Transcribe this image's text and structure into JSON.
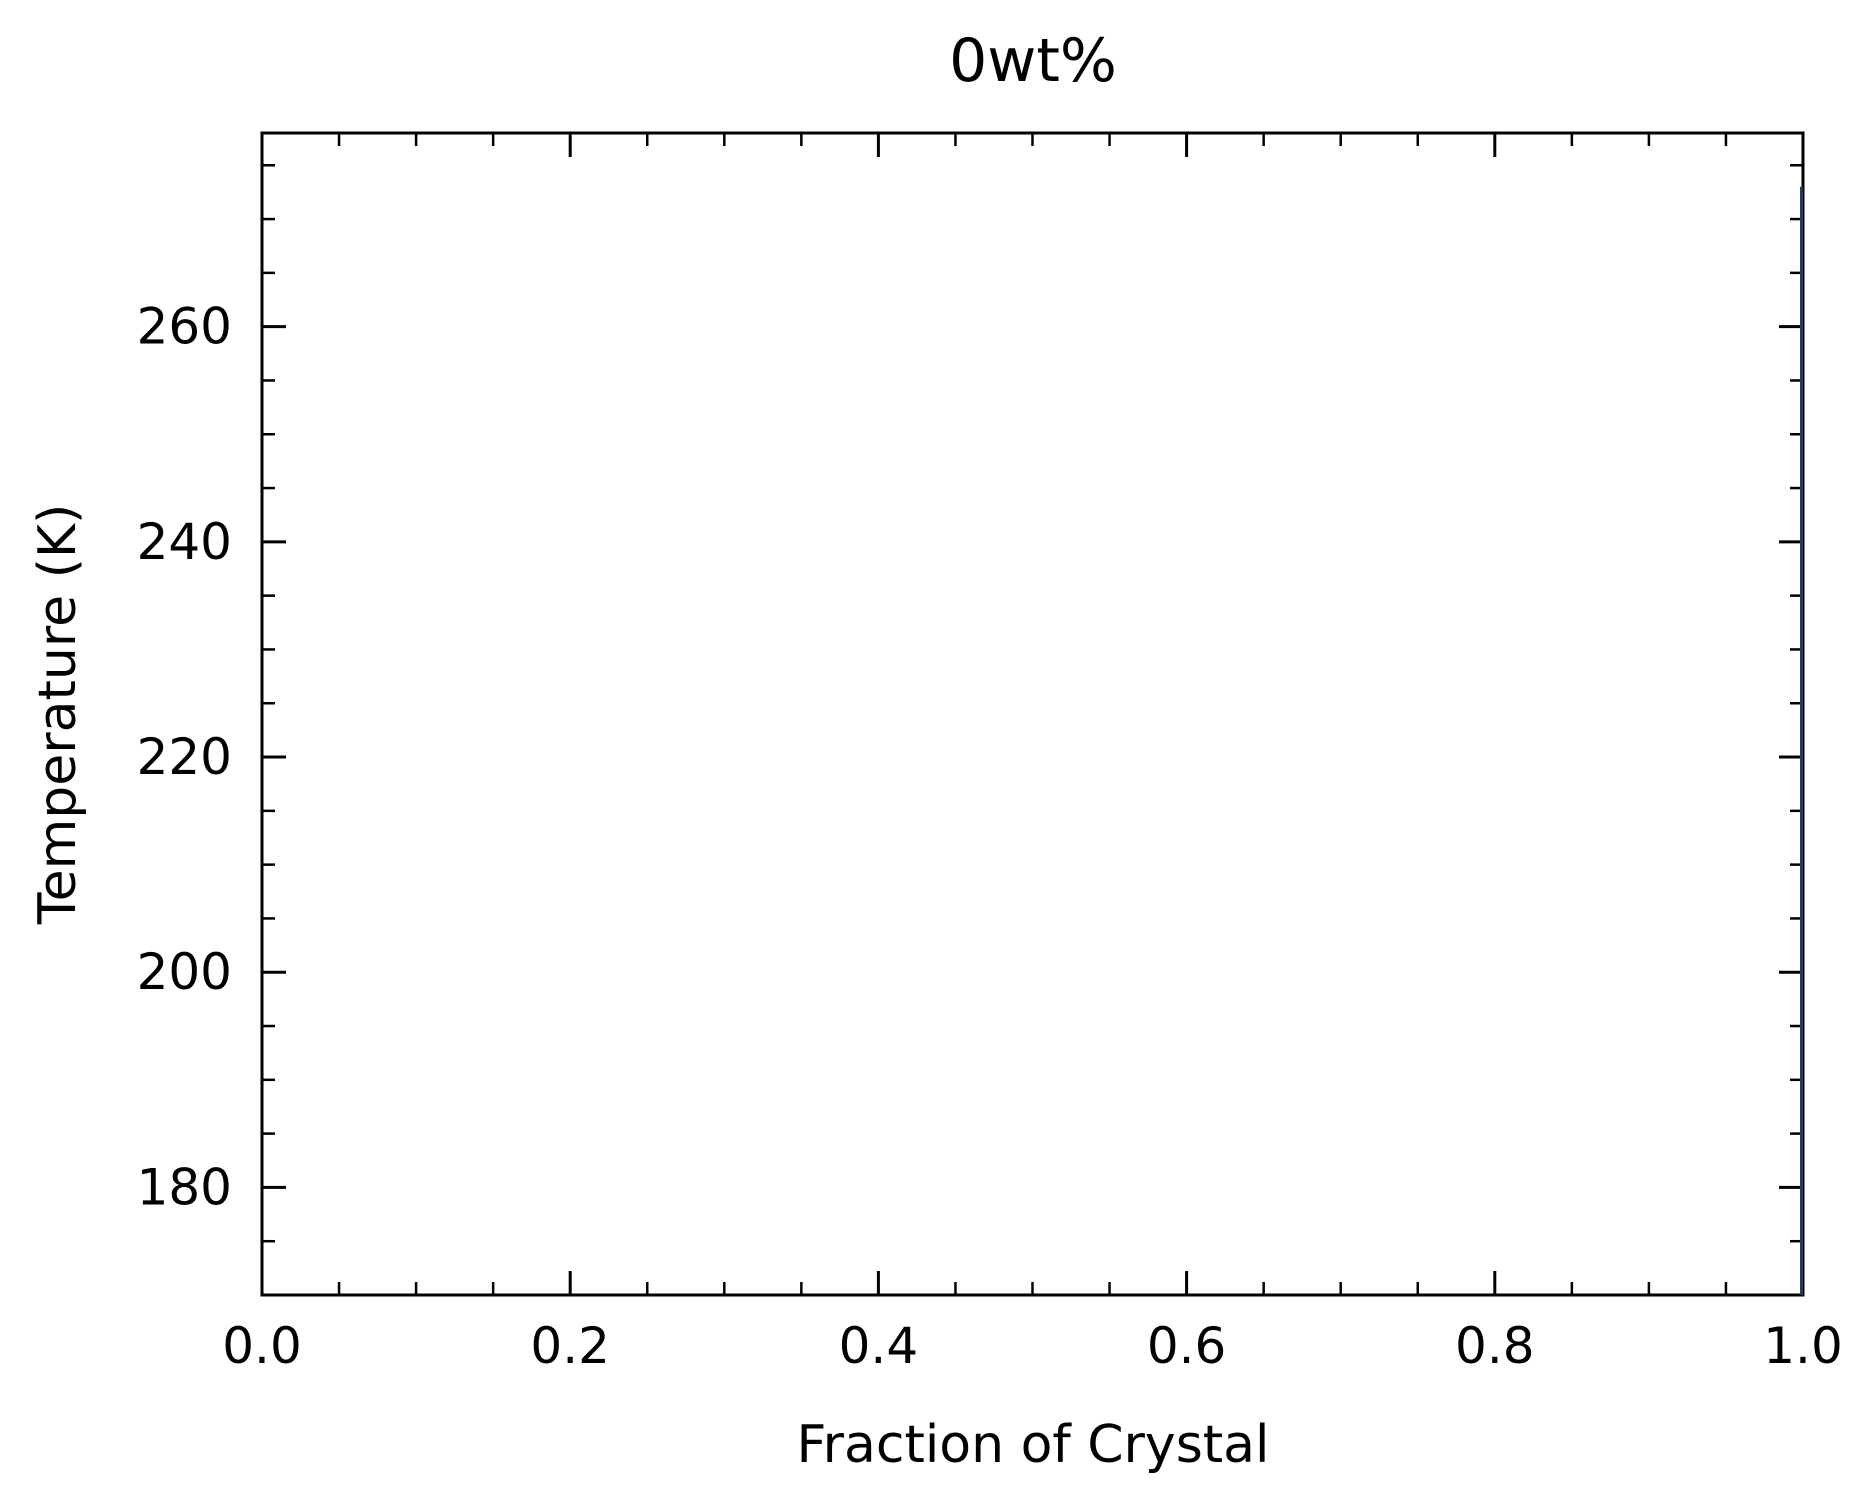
{
  "chart_data": {
    "type": "line",
    "title": "0wt%",
    "xlabel": "Fraction of Crystal",
    "ylabel": "Temperature (K)",
    "xlim": [
      0.0,
      1.0
    ],
    "ylim": [
      170,
      278
    ],
    "xticks": [
      0.0,
      0.2,
      0.4,
      0.6,
      0.8,
      1.0
    ],
    "xtick_labels": [
      "0.0",
      "0.2",
      "0.4",
      "0.6",
      "0.8",
      "1.0"
    ],
    "yticks": [
      180,
      200,
      220,
      240,
      260
    ],
    "ytick_labels": [
      "180",
      "200",
      "220",
      "240",
      "260"
    ],
    "x_minor_step": 0.05,
    "y_minor_step": 5,
    "tick_direction": "in",
    "ticks_on_all_sides": true,
    "grid": false,
    "legend": "none",
    "series": [
      {
        "color": "#1f3a5f",
        "x": [
          1.0,
          1.0
        ],
        "y": [
          170,
          273
        ]
      }
    ]
  }
}
